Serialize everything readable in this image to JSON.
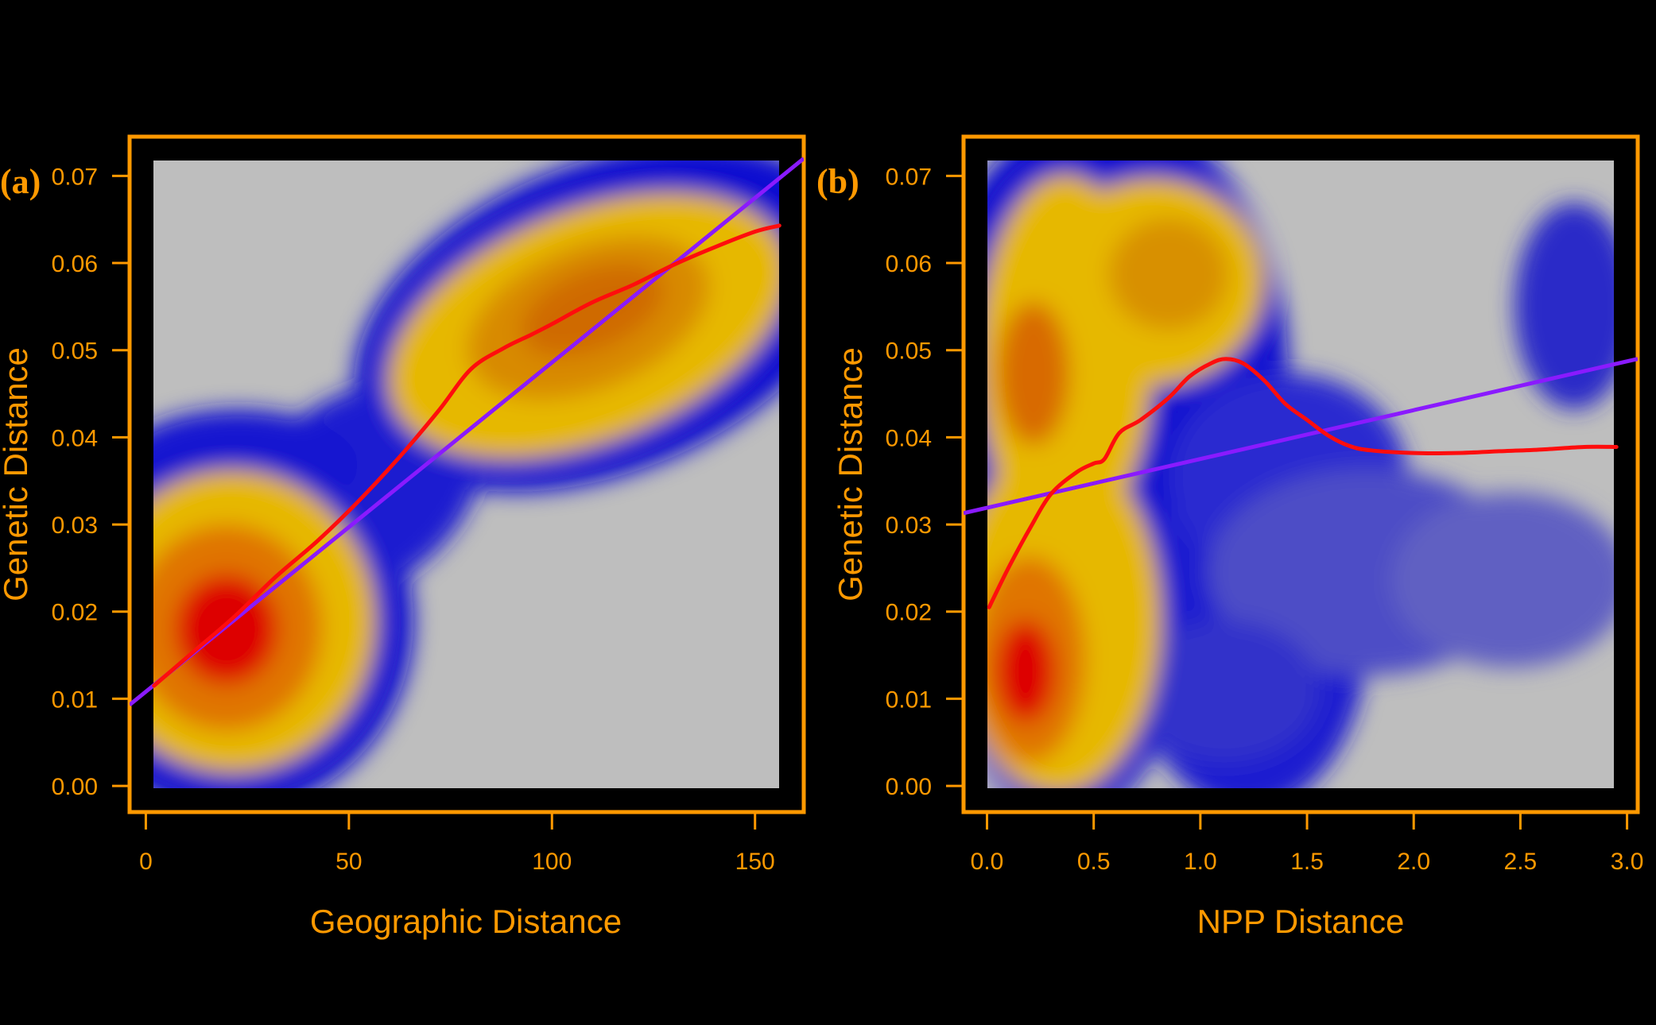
{
  "chart_data": [
    {
      "type": "heatmap",
      "panel_label": "(a)",
      "title": "",
      "xlabel": "Geographic Distance",
      "ylabel": "Genetic Distance",
      "xlim": [
        -4,
        162
      ],
      "ylim": [
        -0.003,
        0.0745
      ],
      "xticks": [
        "0",
        "50",
        "100",
        "150"
      ],
      "xtick_values": [
        0,
        50,
        100,
        150
      ],
      "yticks": [
        "0.00",
        "0.01",
        "0.02",
        "0.03",
        "0.04",
        "0.05",
        "0.06",
        "0.07"
      ],
      "ytick_values": [
        0,
        0.01,
        0.02,
        0.03,
        0.04,
        0.05,
        0.06,
        0.07
      ],
      "density_extent": {
        "x": [
          2,
          157
        ],
        "y": [
          0,
          0.072
        ]
      },
      "density_peaks": [
        {
          "x": 20,
          "y": 0.018,
          "density": "high"
        },
        {
          "x": 105,
          "y": 0.055,
          "density": "medium"
        }
      ],
      "colors": {
        "low": "#bebebe",
        "mid": "#0000cd",
        "upper": "#ffd700",
        "high": "#ff0000"
      },
      "series": [
        {
          "kind": "linear-fit",
          "color": "#8a1aff",
          "x": [
            -4,
            162
          ],
          "y": [
            0.0093,
            0.072
          ]
        },
        {
          "kind": "smoother",
          "color": "#ff0d0d",
          "x": [
            2,
            12,
            22,
            32,
            42,
            52,
            62,
            72,
            80,
            88,
            95,
            100,
            110,
            120,
            130,
            140,
            150,
            156
          ],
          "y": [
            0.0115,
            0.0155,
            0.0195,
            0.024,
            0.028,
            0.0325,
            0.0375,
            0.043,
            0.0478,
            0.0502,
            0.0518,
            0.053,
            0.0555,
            0.0575,
            0.0598,
            0.0618,
            0.0636,
            0.0643
          ]
        }
      ]
    },
    {
      "type": "heatmap",
      "panel_label": "(b)",
      "title": "",
      "xlabel": "NPP Distance",
      "ylabel": "Genetic Distance",
      "xlim": [
        -0.11,
        3.05
      ],
      "ylim": [
        -0.003,
        0.0745
      ],
      "xticks": [
        "0.0",
        "0.5",
        "1.0",
        "1.5",
        "2.0",
        "2.5",
        "3.0"
      ],
      "xtick_values": [
        0,
        0.5,
        1.0,
        1.5,
        2.0,
        2.5,
        3.0
      ],
      "yticks": [
        "0.00",
        "0.01",
        "0.02",
        "0.03",
        "0.04",
        "0.05",
        "0.06",
        "0.07"
      ],
      "ytick_values": [
        0,
        0.01,
        0.02,
        0.03,
        0.04,
        0.05,
        0.06,
        0.07
      ],
      "density_extent": {
        "x": [
          0.01,
          2.95
        ],
        "y": [
          0,
          0.072
        ]
      },
      "density_peaks": [
        {
          "x": 0.2,
          "y": 0.013,
          "density": "high"
        },
        {
          "x": 0.25,
          "y": 0.047,
          "density": "medium"
        },
        {
          "x": 0.95,
          "y": 0.06,
          "density": "medium"
        },
        {
          "x": 2.75,
          "y": 0.055,
          "density": "low"
        }
      ],
      "colors": {
        "low": "#bebebe",
        "mid": "#0000cd",
        "upper": "#ffd700",
        "high": "#ff0000"
      },
      "series": [
        {
          "kind": "linear-fit",
          "color": "#8a1aff",
          "x": [
            -0.11,
            3.05
          ],
          "y": [
            0.0313,
            0.049
          ]
        },
        {
          "kind": "smoother",
          "color": "#ff0d0d",
          "x": [
            0.01,
            0.1,
            0.2,
            0.3,
            0.42,
            0.5,
            0.55,
            0.62,
            0.72,
            0.85,
            0.95,
            1.05,
            1.12,
            1.2,
            1.3,
            1.4,
            1.5,
            1.6,
            1.7,
            1.8,
            2.0,
            2.2,
            2.4,
            2.6,
            2.8,
            2.95
          ],
          "y": [
            0.0205,
            0.025,
            0.0295,
            0.0335,
            0.036,
            0.037,
            0.0375,
            0.0405,
            0.042,
            0.0445,
            0.047,
            0.0485,
            0.049,
            0.0485,
            0.0465,
            0.0438,
            0.042,
            0.0402,
            0.039,
            0.0385,
            0.0382,
            0.0382,
            0.0384,
            0.0386,
            0.0389,
            0.0389
          ]
        }
      ]
    }
  ]
}
